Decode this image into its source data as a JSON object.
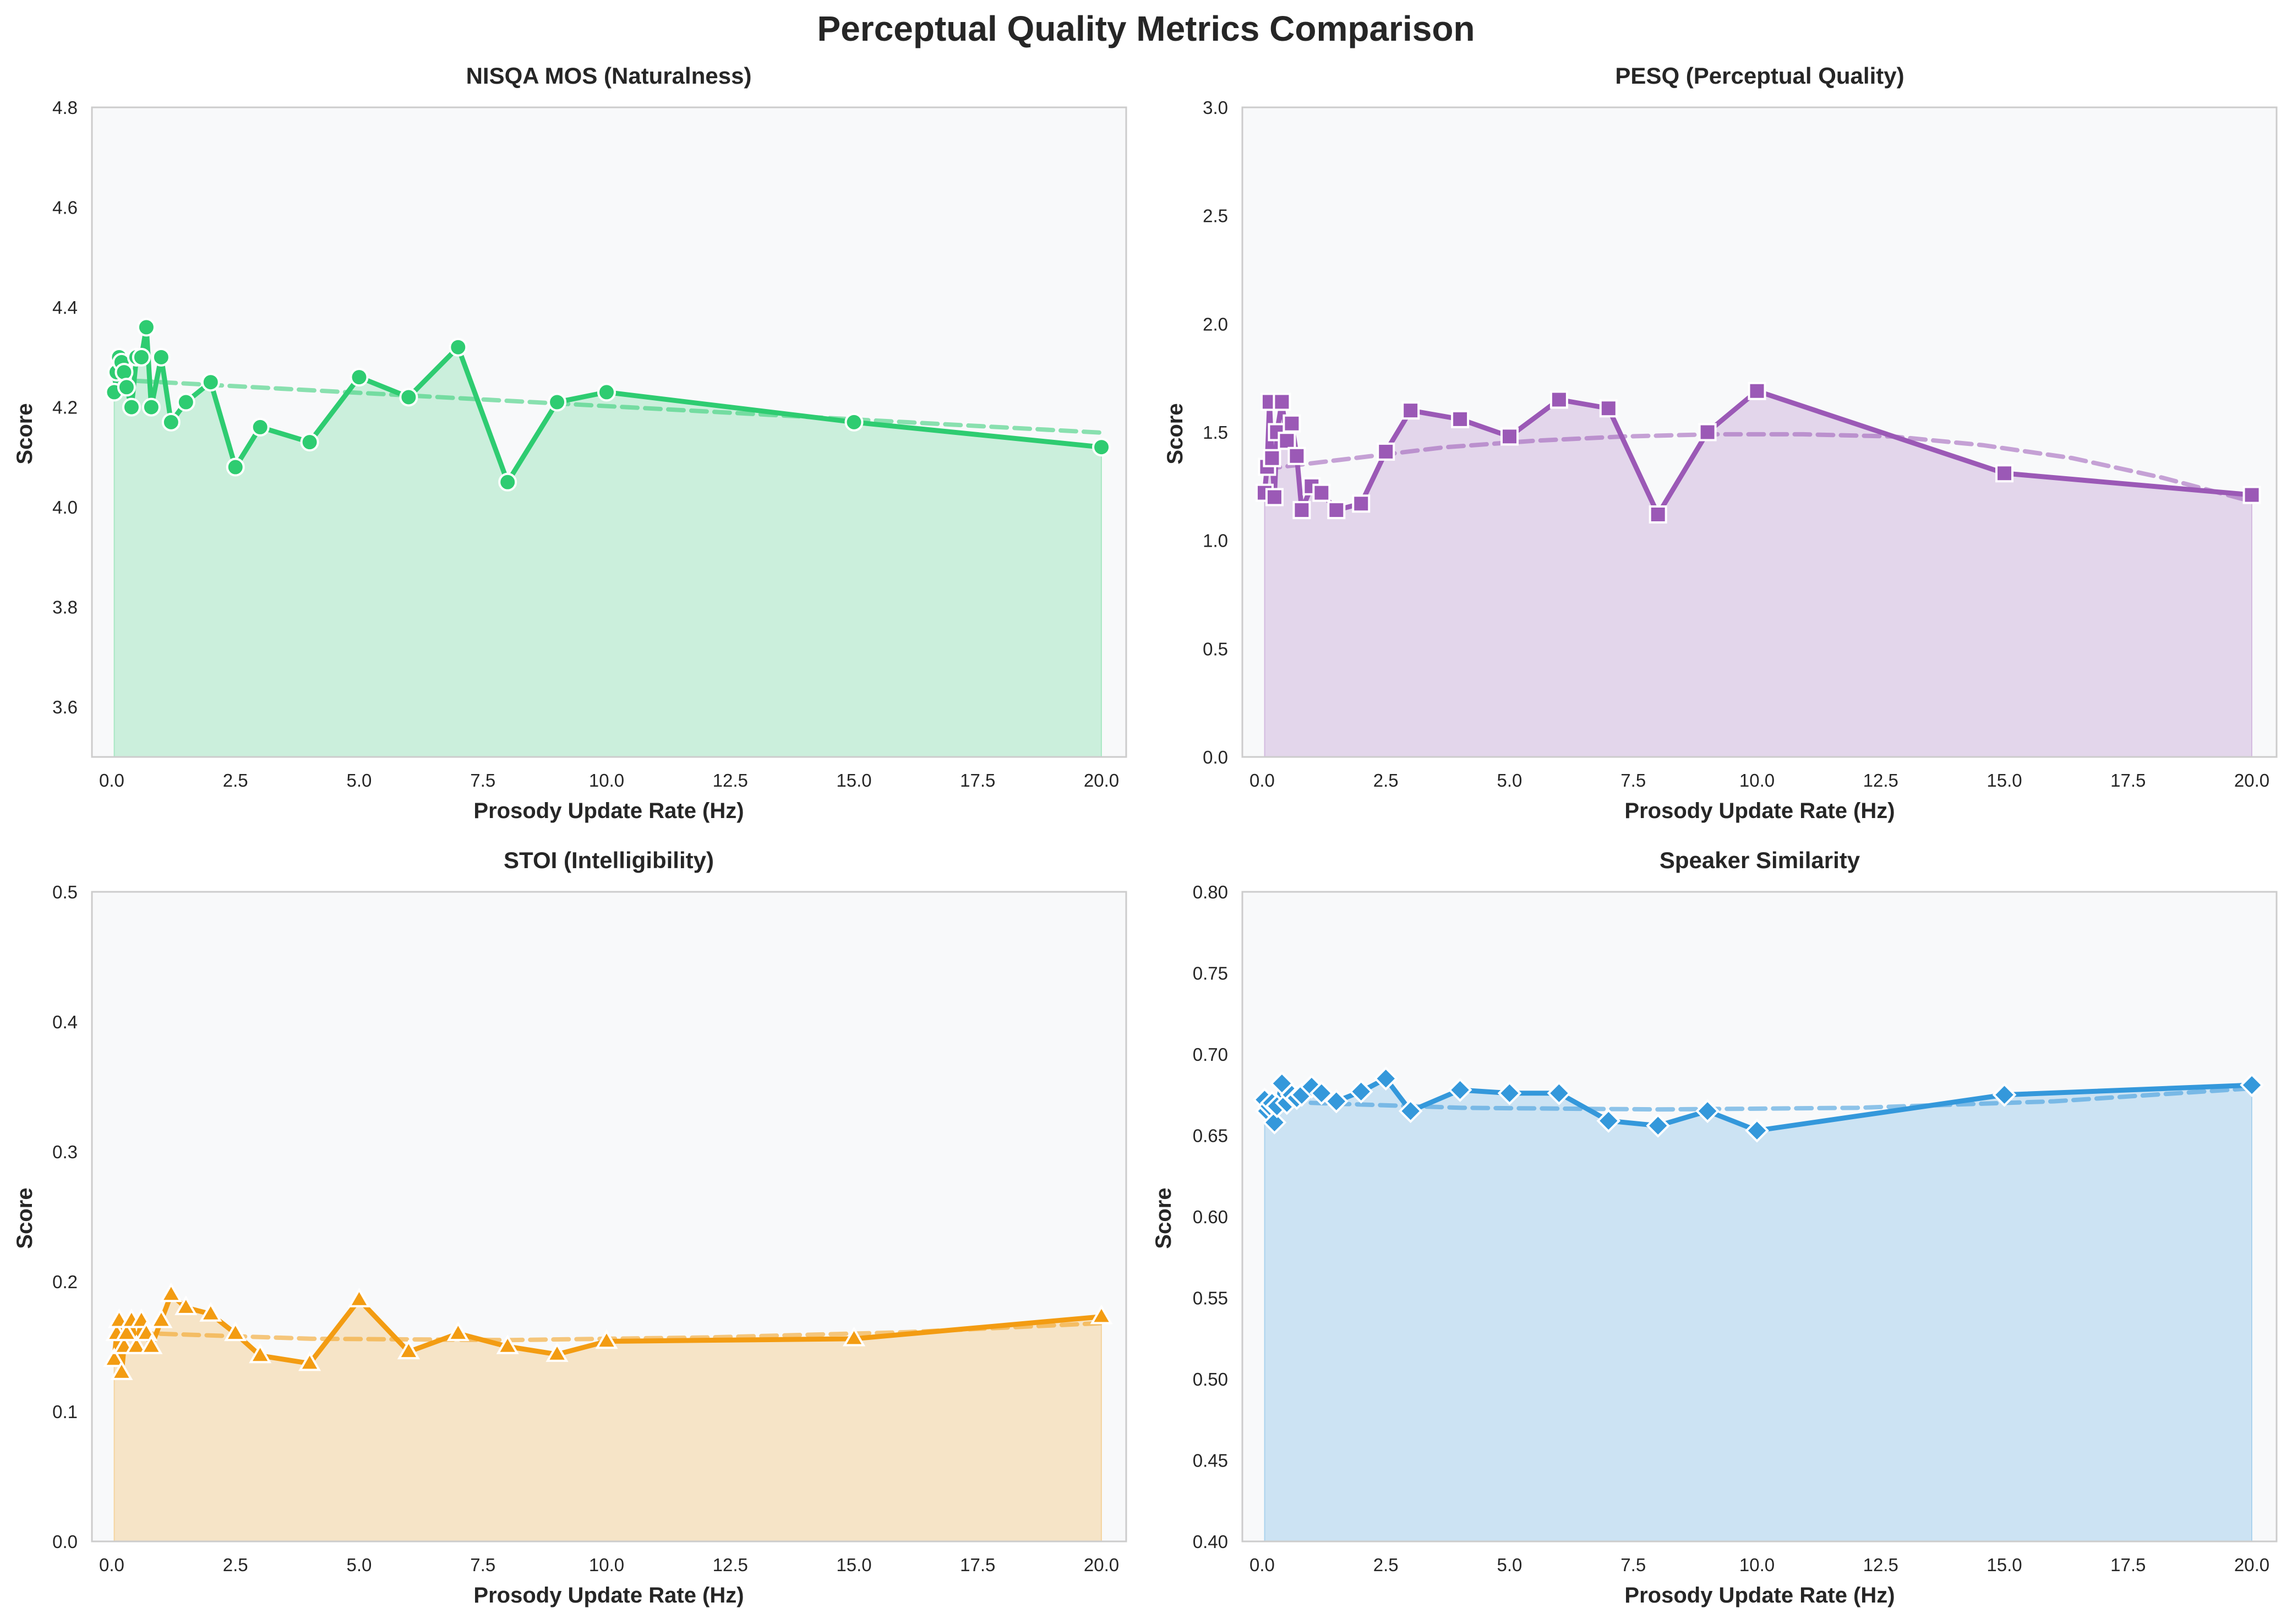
{
  "figure": {
    "title": "Perceptual Quality Metrics Comparison"
  },
  "chart_data": [
    {
      "id": "nisqa",
      "type": "line",
      "title": "NISQA MOS (Naturalness)",
      "xlabel": "Prosody Update Rate (Hz)",
      "ylabel": "Score",
      "xlim": [
        -0.4,
        20.5
      ],
      "ylim": [
        3.5,
        4.8
      ],
      "xticks": [
        0.0,
        2.5,
        5.0,
        7.5,
        10.0,
        12.5,
        15.0,
        17.5,
        20.0
      ],
      "xtick_labels": [
        "0.0",
        "2.5",
        "5.0",
        "7.5",
        "10.0",
        "12.5",
        "15.0",
        "17.5",
        "20.0"
      ],
      "yticks": [
        3.6,
        3.8,
        4.0,
        4.2,
        4.4,
        4.6,
        4.8
      ],
      "ytick_labels": [
        "3.6",
        "3.8",
        "4.0",
        "4.2",
        "4.4",
        "4.6",
        "4.8"
      ],
      "color": "#2ecc71",
      "marker": "circle",
      "x": [
        0.05,
        0.1,
        0.15,
        0.2,
        0.25,
        0.3,
        0.4,
        0.5,
        0.6,
        0.7,
        0.8,
        1.0,
        1.2,
        1.5,
        2.0,
        2.5,
        3.0,
        4.0,
        5.0,
        6.0,
        7.0,
        8.0,
        9.0,
        10.0,
        15.0,
        20.0
      ],
      "y": [
        4.23,
        4.27,
        4.3,
        4.29,
        4.27,
        4.24,
        4.2,
        4.3,
        4.3,
        4.36,
        4.2,
        4.3,
        4.17,
        4.21,
        4.25,
        4.08,
        4.16,
        4.13,
        4.26,
        4.22,
        4.32,
        4.05,
        4.21,
        4.23,
        4.17,
        4.12
      ],
      "trend": [
        4.255,
        4.149
      ],
      "trend_style": "dashed"
    },
    {
      "id": "pesq",
      "type": "line",
      "title": "PESQ (Perceptual Quality)",
      "xlabel": "Prosody Update Rate (Hz)",
      "ylabel": "Score",
      "xlim": [
        -0.4,
        20.5
      ],
      "ylim": [
        0.0,
        3.0
      ],
      "xticks": [
        0.0,
        2.5,
        5.0,
        7.5,
        10.0,
        12.5,
        15.0,
        17.5,
        20.0
      ],
      "xtick_labels": [
        "0.0",
        "2.5",
        "5.0",
        "7.5",
        "10.0",
        "12.5",
        "15.0",
        "17.5",
        "20.0"
      ],
      "yticks": [
        0.0,
        0.5,
        1.0,
        1.5,
        2.0,
        2.5,
        3.0
      ],
      "ytick_labels": [
        "0.0",
        "0.5",
        "1.0",
        "1.5",
        "2.0",
        "2.5",
        "3.0"
      ],
      "color": "#9b59b6",
      "marker": "square",
      "x": [
        0.05,
        0.1,
        0.15,
        0.2,
        0.25,
        0.3,
        0.4,
        0.5,
        0.6,
        0.7,
        0.8,
        1.0,
        1.2,
        1.5,
        2.0,
        2.5,
        3.0,
        4.0,
        5.0,
        6.0,
        7.0,
        8.0,
        9.0,
        10.0,
        15.0,
        20.0
      ],
      "y": [
        1.22,
        1.34,
        1.64,
        1.38,
        1.2,
        1.5,
        1.64,
        1.46,
        1.54,
        1.39,
        1.14,
        1.25,
        1.22,
        1.14,
        1.17,
        1.41,
        1.6,
        1.56,
        1.48,
        1.65,
        1.61,
        1.12,
        1.5,
        1.69,
        1.31,
        1.21
      ],
      "trend": [
        1.33,
        1.38,
        1.43,
        1.46,
        1.48,
        1.49,
        1.49,
        1.48,
        1.44,
        1.38,
        1.29,
        1.18
      ],
      "trend_style": "dashed"
    },
    {
      "id": "stoi",
      "type": "line",
      "title": "STOI (Intelligibility)",
      "xlabel": "Prosody Update Rate (Hz)",
      "ylabel": "Score",
      "xlim": [
        -0.4,
        20.5
      ],
      "ylim": [
        0.0,
        0.5
      ],
      "xticks": [
        0.0,
        2.5,
        5.0,
        7.5,
        10.0,
        12.5,
        15.0,
        17.5,
        20.0
      ],
      "xtick_labels": [
        "0.0",
        "2.5",
        "5.0",
        "7.5",
        "10.0",
        "12.5",
        "15.0",
        "17.5",
        "20.0"
      ],
      "yticks": [
        0.0,
        0.1,
        0.2,
        0.3,
        0.4,
        0.5
      ],
      "ytick_labels": [
        "0.0",
        "0.1",
        "0.2",
        "0.3",
        "0.4",
        "0.5"
      ],
      "color": "#f39c12",
      "marker": "triangle",
      "x": [
        0.05,
        0.1,
        0.15,
        0.2,
        0.25,
        0.3,
        0.4,
        0.5,
        0.6,
        0.7,
        0.8,
        1.0,
        1.2,
        1.5,
        2.0,
        2.5,
        3.0,
        4.0,
        5.0,
        6.0,
        7.0,
        8.0,
        9.0,
        10.0,
        15.0,
        20.0
      ],
      "y": [
        0.14,
        0.16,
        0.17,
        0.13,
        0.15,
        0.16,
        0.17,
        0.15,
        0.17,
        0.16,
        0.15,
        0.17,
        0.19,
        0.18,
        0.175,
        0.16,
        0.143,
        0.137,
        0.186,
        0.146,
        0.16,
        0.15,
        0.144,
        0.154,
        0.156,
        0.173
      ],
      "trend": [
        0.161,
        0.156,
        0.155,
        0.157,
        0.161,
        0.168
      ],
      "trend_style": "dashed"
    },
    {
      "id": "similarity",
      "type": "line",
      "title": "Speaker Similarity",
      "xlabel": "Prosody Update Rate (Hz)",
      "ylabel": "Score",
      "xlim": [
        -0.4,
        20.5
      ],
      "ylim": [
        0.4,
        0.8
      ],
      "xticks": [
        0.0,
        2.5,
        5.0,
        7.5,
        10.0,
        12.5,
        15.0,
        17.5,
        20.0
      ],
      "xtick_labels": [
        "0.0",
        "2.5",
        "5.0",
        "7.5",
        "10.0",
        "12.5",
        "15.0",
        "17.5",
        "20.0"
      ],
      "yticks": [
        0.4,
        0.45,
        0.5,
        0.55,
        0.6,
        0.65,
        0.7,
        0.75,
        0.8
      ],
      "ytick_labels": [
        "0.40",
        "0.45",
        "0.50",
        "0.55",
        "0.60",
        "0.65",
        "0.70",
        "0.75",
        "0.80"
      ],
      "color": "#3498db",
      "marker": "diamond",
      "x": [
        0.05,
        0.1,
        0.15,
        0.2,
        0.25,
        0.3,
        0.4,
        0.5,
        0.6,
        0.7,
        0.8,
        1.0,
        1.2,
        1.5,
        2.0,
        2.5,
        3.0,
        4.0,
        5.0,
        6.0,
        7.0,
        8.0,
        9.0,
        10.0,
        15.0,
        20.0
      ],
      "y": [
        0.672,
        0.665,
        0.668,
        0.67,
        0.658,
        0.668,
        0.682,
        0.67,
        0.675,
        0.673,
        0.675,
        0.68,
        0.676,
        0.671,
        0.677,
        0.685,
        0.665,
        0.678,
        0.676,
        0.676,
        0.659,
        0.656,
        0.665,
        0.653,
        0.675,
        0.681
      ],
      "trend": [
        0.671,
        0.667,
        0.666,
        0.667,
        0.671,
        0.679
      ],
      "trend_style": "dashed"
    }
  ]
}
